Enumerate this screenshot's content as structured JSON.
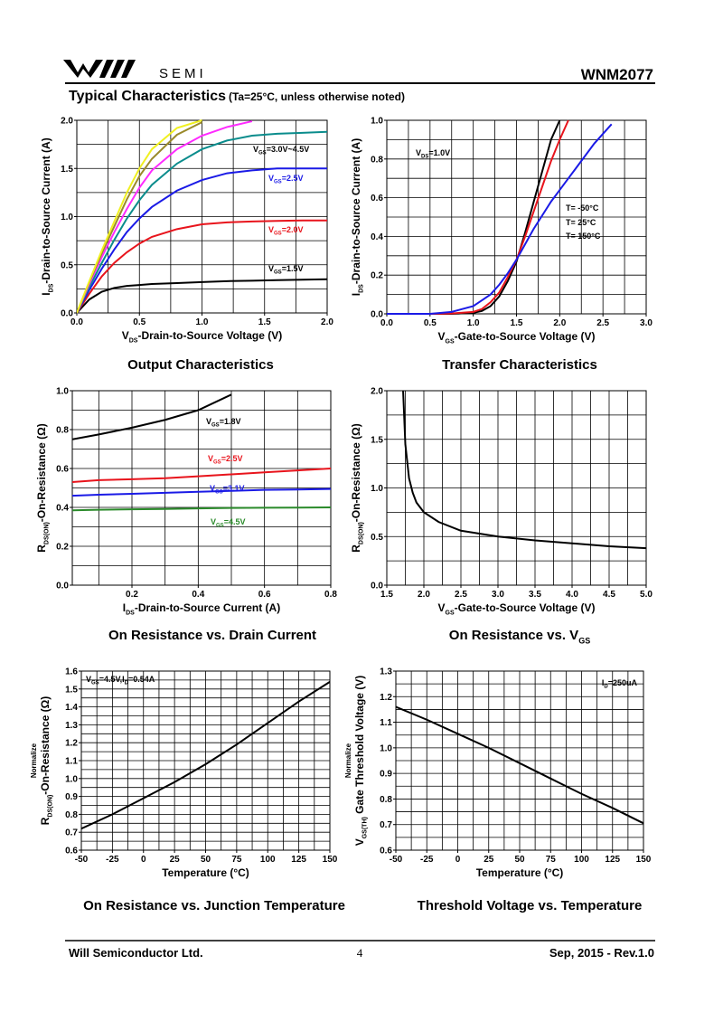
{
  "header": {
    "brand": "SEMI",
    "part_number": "WNM2077",
    "section_title": "Typical Characteristics",
    "section_note": "(Ta=25°C, unless otherwise noted)"
  },
  "footer": {
    "company": "Will Semiconductor Ltd.",
    "page": "4",
    "revision": "Sep, 2015 - Rev.1.0"
  },
  "chart_data": [
    {
      "type": "line",
      "title": "Output Characteristics",
      "x_label": [
        "V",
        "DS",
        "-Drain-to-Source Voltage (V)"
      ],
      "y_label": [
        "I",
        "DS",
        "-Drain-to-Source Current (A)"
      ],
      "xlim": [
        0,
        2
      ],
      "ylim": [
        0,
        2
      ],
      "xticks": [
        {
          "value": 0,
          "label": "0.0"
        },
        0.5,
        {
          "value": 1,
          "label": "1.0"
        },
        1.5,
        {
          "value": 2,
          "label": "2.0"
        }
      ],
      "yticks": [
        {
          "value": 0,
          "label": "0.0"
        },
        0.5,
        {
          "value": 1,
          "label": "1.0"
        },
        1.5,
        {
          "value": 2,
          "label": "2.0"
        }
      ],
      "grid": true,
      "xgrid_step": 0.25,
      "ygrid_step": 0.25,
      "x": [
        0,
        0.1,
        0.2,
        0.3,
        0.4,
        0.5,
        0.6,
        0.8,
        1.0,
        1.2,
        1.4,
        1.6,
        1.8,
        2.0
      ],
      "series": [
        {
          "name": [
            "V",
            "GS",
            "=1.5V"
          ],
          "color": "#000000",
          "values": [
            0,
            0.14,
            0.22,
            0.26,
            0.28,
            0.29,
            0.3,
            0.31,
            0.32,
            0.33,
            0.335,
            0.34,
            0.345,
            0.35
          ]
        },
        {
          "name": [
            "V",
            "GS",
            "=2.0V"
          ],
          "color": "#e8141c",
          "values": [
            0,
            0.2,
            0.38,
            0.52,
            0.63,
            0.72,
            0.79,
            0.87,
            0.92,
            0.94,
            0.95,
            0.955,
            0.96,
            0.96
          ]
        },
        {
          "name": [
            "V",
            "GS",
            "=2.5V"
          ],
          "color": "#1a1ae6",
          "values": [
            0,
            0.24,
            0.46,
            0.66,
            0.84,
            0.98,
            1.1,
            1.27,
            1.38,
            1.45,
            1.48,
            1.5,
            1.5,
            1.5
          ]
        },
        {
          "name": [
            "V",
            "GS",
            "=3.0V~4.5V"
          ],
          "color": "#0a8c8c",
          "label_color": "#000000",
          "values": [
            0,
            0.27,
            0.52,
            0.76,
            0.98,
            1.17,
            1.33,
            1.55,
            1.7,
            1.79,
            1.84,
            1.86,
            1.87,
            1.88
          ]
        },
        {
          "color": "#ff2aff",
          "values": [
            0,
            0.3,
            0.58,
            0.84,
            1.08,
            1.3,
            1.48,
            1.7,
            1.84,
            1.93,
            1.99,
            null,
            null,
            null
          ]
        },
        {
          "color": "#9a8a2a",
          "values": [
            0,
            0.32,
            0.62,
            0.9,
            1.18,
            1.42,
            1.6,
            1.85,
            1.98,
            null,
            null,
            null,
            null,
            null
          ]
        },
        {
          "color": "#f0f020",
          "values": [
            0,
            0.33,
            0.65,
            0.95,
            1.25,
            1.5,
            1.7,
            1.92,
            2.0,
            null,
            null,
            null,
            null,
            null
          ]
        }
      ]
    },
    {
      "type": "line",
      "title": "Transfer Characteristics",
      "x_label": [
        "V",
        "GS",
        "-Gate-to-Source Voltage (V)"
      ],
      "y_label": [
        "I",
        "DS",
        "-Drain-to-Source Current (A)"
      ],
      "annotation": [
        "V",
        "DS",
        "=1.0V"
      ],
      "xlim": [
        0,
        3
      ],
      "ylim": [
        0,
        1
      ],
      "xticks": [
        {
          "value": 0,
          "label": "0.0"
        },
        0.5,
        {
          "value": 1,
          "label": "1.0"
        },
        1.5,
        {
          "value": 2,
          "label": "2.0"
        },
        2.5,
        {
          "value": 3,
          "label": "3.0"
        }
      ],
      "yticks": [
        {
          "value": 0,
          "label": "0.0"
        },
        0.2,
        0.4,
        0.6,
        0.8,
        {
          "value": 1,
          "label": "1.0"
        }
      ],
      "grid": true,
      "xgrid_step": 0.25,
      "ygrid_step": 0.1,
      "x": [
        0,
        0.5,
        0.75,
        1.0,
        1.1,
        1.2,
        1.3,
        1.4,
        1.5,
        1.6,
        1.7,
        1.8,
        1.9,
        2.0,
        2.1,
        2.2,
        2.4,
        2.6
      ],
      "series": [
        {
          "name": "T= -50°C",
          "color": "#000000",
          "values": [
            0,
            0,
            0,
            0.005,
            0.015,
            0.04,
            0.09,
            0.17,
            0.27,
            0.42,
            0.58,
            0.74,
            0.9,
            1.0,
            null,
            null,
            null,
            null
          ]
        },
        {
          "name": "T= 25°C",
          "color": "#e8141c",
          "values": [
            0,
            0,
            0.002,
            0.01,
            0.025,
            0.06,
            0.11,
            0.19,
            0.28,
            0.4,
            0.53,
            0.66,
            0.79,
            0.9,
            1.0,
            null,
            null,
            null
          ]
        },
        {
          "name": "T= 150°C",
          "color": "#1a1ae6",
          "values": [
            0,
            0,
            0.01,
            0.04,
            0.07,
            0.1,
            0.15,
            0.21,
            0.28,
            0.36,
            0.44,
            0.51,
            0.58,
            0.64,
            0.7,
            0.76,
            0.88,
            0.98
          ]
        }
      ]
    },
    {
      "type": "line",
      "title": "On Resistance vs. Drain Current",
      "x_label": [
        "I",
        "DS",
        "-Drain-to-Source Current (A)"
      ],
      "y_label": [
        "R",
        "DS(ON)",
        "-On-Resistance (Ω)"
      ],
      "xlim": [
        0.02,
        0.8
      ],
      "ylim": [
        0,
        1
      ],
      "xticks": [
        0.2,
        0.4,
        0.6,
        0.8
      ],
      "yticks": [
        {
          "value": 0,
          "label": "0.0"
        },
        0.2,
        0.4,
        0.6,
        0.8,
        {
          "value": 1,
          "label": "1.0"
        }
      ],
      "grid": true,
      "xgrid_step": 0.1,
      "ygrid_step": 0.1,
      "x": [
        0.02,
        0.1,
        0.2,
        0.3,
        0.4,
        0.5,
        0.6,
        0.7,
        0.8
      ],
      "series": [
        {
          "name": [
            "V",
            "GS",
            "=1.8V"
          ],
          "color": "#000000",
          "values": [
            0.75,
            0.775,
            0.81,
            0.85,
            0.9,
            0.98,
            null,
            null,
            null
          ]
        },
        {
          "name": [
            "V",
            "GS",
            "=2.5V"
          ],
          "color": "#e8141c",
          "values": [
            0.53,
            0.54,
            0.545,
            0.55,
            0.56,
            0.57,
            0.58,
            0.59,
            0.6
          ]
        },
        {
          "name": [
            "V",
            "GS",
            "=3.1V"
          ],
          "color": "#1a1ae6",
          "values": [
            0.46,
            0.465,
            0.47,
            0.475,
            0.48,
            0.485,
            0.49,
            0.492,
            0.495
          ]
        },
        {
          "name": [
            "V",
            "GS",
            "=4.5V"
          ],
          "color": "#2a8a2a",
          "values": [
            0.385,
            0.388,
            0.39,
            0.392,
            0.395,
            0.397,
            0.398,
            0.399,
            0.4
          ]
        }
      ]
    },
    {
      "type": "line",
      "title": [
        "On Resistance vs. V",
        "GS"
      ],
      "x_label": [
        "V",
        "GS",
        "-Gate-to-Source Voltage (V)"
      ],
      "y_label": [
        "R",
        "DS(ON)",
        "-On-Resistance (Ω)"
      ],
      "xlim": [
        1.5,
        5
      ],
      "ylim": [
        0,
        2
      ],
      "xticks": [
        1.5,
        {
          "value": 2,
          "label": "2.0"
        },
        2.5,
        {
          "value": 3,
          "label": "3.0"
        },
        3.5,
        {
          "value": 4,
          "label": "4.0"
        },
        4.5,
        {
          "value": 5,
          "label": "5.0"
        }
      ],
      "yticks": [
        {
          "value": 0,
          "label": "0.0"
        },
        0.5,
        {
          "value": 1,
          "label": "1.0"
        },
        1.5,
        {
          "value": 2,
          "label": "2.0"
        }
      ],
      "grid": true,
      "xgrid_step": 0.25,
      "ygrid_step": 0.25,
      "x": [
        1.72,
        1.75,
        1.8,
        1.85,
        1.9,
        2.0,
        2.2,
        2.5,
        3.0,
        3.5,
        4.0,
        4.5,
        5.0
      ],
      "series": [
        {
          "color": "#000000",
          "values": [
            2.0,
            1.45,
            1.1,
            0.95,
            0.85,
            0.75,
            0.65,
            0.56,
            0.5,
            0.46,
            0.43,
            0.4,
            0.38
          ]
        }
      ]
    },
    {
      "type": "line",
      "title": "On Resistance vs. Junction Temperature",
      "x_label": "Temperature (°C)",
      "y_note": "Normalize",
      "y_label": [
        "R",
        "DS(ON)",
        "-On-Resistance (Ω)"
      ],
      "annotation": [
        "V",
        "GS",
        "=4.5V,I",
        "D",
        "=0.54A"
      ],
      "xlim": [
        -50,
        150
      ],
      "ylim": [
        0.6,
        1.6
      ],
      "xticks": [
        -50,
        -25,
        0,
        25,
        50,
        75,
        100,
        125,
        150
      ],
      "yticks": [
        0.6,
        0.7,
        0.8,
        0.9,
        {
          "value": 1,
          "label": "1.0"
        },
        1.1,
        1.2,
        1.3,
        1.4,
        1.5,
        1.6
      ],
      "grid": true,
      "xgrid_step": 12.5,
      "ygrid_step": 0.05,
      "x": [
        -50,
        -25,
        0,
        25,
        50,
        75,
        100,
        125,
        150
      ],
      "series": [
        {
          "color": "#000000",
          "values": [
            0.72,
            0.8,
            0.89,
            0.98,
            1.08,
            1.19,
            1.31,
            1.43,
            1.54
          ]
        }
      ]
    },
    {
      "type": "line",
      "title": "Threshold Voltage vs. Temperature",
      "x_label": "Temperature (°C)",
      "y_note": "Normalize",
      "y_label": [
        "V",
        "GS(TH)",
        " Gate Threshold Voltage (V)"
      ],
      "annotation": [
        "I",
        "D",
        "=250uA"
      ],
      "xlim": [
        -50,
        150
      ],
      "ylim": [
        0.6,
        1.3
      ],
      "xticks": [
        -50,
        -25,
        0,
        25,
        50,
        75,
        100,
        125,
        150
      ],
      "yticks": [
        0.6,
        0.7,
        0.8,
        0.9,
        {
          "value": 1,
          "label": "1.0"
        },
        1.1,
        1.2,
        1.3
      ],
      "grid": true,
      "xgrid_step": 12.5,
      "ygrid_step": 0.05,
      "x": [
        -50,
        -25,
        0,
        25,
        50,
        75,
        100,
        125,
        150
      ],
      "series": [
        {
          "color": "#000000",
          "values": [
            1.16,
            1.11,
            1.055,
            1.0,
            0.94,
            0.88,
            0.82,
            0.765,
            0.705
          ]
        }
      ]
    }
  ]
}
